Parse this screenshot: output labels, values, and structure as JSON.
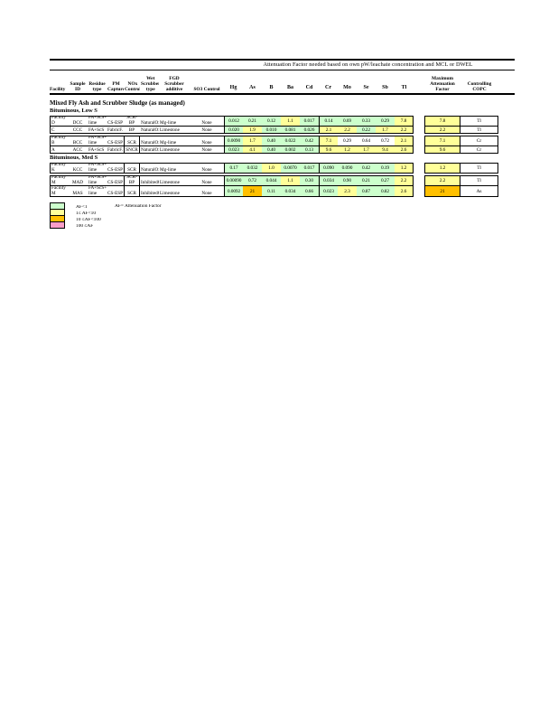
{
  "page": {
    "title": "Attenuation Factor needed based on own pW/leachate concentration and MCL or DWEL"
  },
  "colors": {
    "g": "#CCFFCC",
    "y": "#FFFF99",
    "o": "#FFC000",
    "p": "#FA9DC7",
    "w": "#FFFFFF"
  },
  "table": {
    "left_headers": [
      "Facility",
      "Sample ID",
      "Residue type",
      "PM Capture",
      "NOx Control",
      "Wet Scrubber type",
      "FGD Scrubber additive",
      "SO3 Control"
    ],
    "element_headers": [
      "Hg",
      "As",
      "B",
      "Ba",
      "Cd",
      "Cr",
      "Mo",
      "Se",
      "Sb",
      "Tl"
    ],
    "max_header": "Maximum Attenuation Factor",
    "copc_header": "Controlling COPC",
    "section_title": "Mixed Fly Ash and Scrubber Sludge (as managed)",
    "groups": [
      {
        "subtitle": "Bituminous,  Low S",
        "blocks": [
          [
            {
              "facility": "Facility D",
              "sample_id": "DCC",
              "residue": "FA+ScS+ lime",
              "pm_capture": "CS-ESP",
              "nox_control": "SCR-BP",
              "nox_boxed": false,
              "wet_scrubber": "NaturalOx.",
              "fgd_additive": "Mg-lime",
              "so3_control": "None",
              "two_line": true,
              "values": [
                [
                  "0.012",
                  "g"
                ],
                [
                  "0.21",
                  "g"
                ],
                [
                  "0.12",
                  "g"
                ],
                [
                  "1.1",
                  "y"
                ],
                [
                  "0.017",
                  "g"
                ],
                [
                  "0.14",
                  "g"
                ],
                [
                  "0.69",
                  "g"
                ],
                [
                  "0.33",
                  "g"
                ],
                [
                  "0.29",
                  "g"
                ],
                [
                  "7.8",
                  "y"
                ]
              ],
              "max": [
                "7.8",
                "y"
              ],
              "copc": "Tl"
            },
            {
              "facility": "Facility C",
              "sample_id": "CCC",
              "residue": "FA+ScS",
              "pm_capture": "FabricF.",
              "nox_control": "SNCR-BP",
              "nox_boxed": false,
              "wet_scrubber": "NaturalOx.",
              "fgd_additive": "Limestone",
              "so3_control": "None",
              "two_line": false,
              "values": [
                [
                  "0.020",
                  "g"
                ],
                [
                  "1.9",
                  "y"
                ],
                [
                  "0.010",
                  "g"
                ],
                [
                  "0.081",
                  "g"
                ],
                [
                  "0.026",
                  "g"
                ],
                [
                  "2.1",
                  "y"
                ],
                [
                  "2.2",
                  "y"
                ],
                [
                  "0.22",
                  "g"
                ],
                [
                  "1.7",
                  "y"
                ],
                [
                  "2.2",
                  "y"
                ]
              ],
              "max": [
                "2.2",
                "y"
              ],
              "copc": "Tl"
            }
          ],
          [
            {
              "facility": "Facility B",
              "sample_id": "BCC",
              "residue": "FA+ScS+ lime",
              "pm_capture": "CS-ESP",
              "nox_control": "SCR",
              "nox_boxed": true,
              "wet_scrubber": "NaturalOx.",
              "fgd_additive": "Mg-lime",
              "so3_control": "None",
              "two_line": true,
              "values": [
                [
                  "0.0090",
                  "g"
                ],
                [
                  "1.7",
                  "y"
                ],
                [
                  "0.40",
                  "g"
                ],
                [
                  "0.022",
                  "g"
                ],
                [
                  "0.42",
                  "g"
                ],
                [
                  "7.1",
                  "y"
                ],
                [
                  "0.29",
                  "w"
                ],
                [
                  "0.64",
                  "w"
                ],
                [
                  "0.72",
                  "w"
                ],
                [
                  "2.1",
                  "y"
                ]
              ],
              "max": [
                "7.1",
                "y"
              ],
              "copc": "Cr"
            },
            {
              "facility": "Facility A",
              "sample_id": "ACC",
              "residue": "FA+ScS",
              "pm_capture": "FabricF.",
              "nox_control": "SNCR",
              "nox_boxed": true,
              "wet_scrubber": "NaturalOx.",
              "fgd_additive": "Limestone",
              "so3_control": "None",
              "two_line": false,
              "values": [
                [
                  "0.023",
                  "g"
                ],
                [
                  "4.1",
                  "y"
                ],
                [
                  "0.40",
                  "g"
                ],
                [
                  "0.002",
                  "g"
                ],
                [
                  "0.13",
                  "g"
                ],
                [
                  "9.6",
                  "y"
                ],
                [
                  "1.2",
                  "y"
                ],
                [
                  "1.7",
                  "y"
                ],
                [
                  "9.4",
                  "y"
                ],
                [
                  "2.6",
                  "y"
                ]
              ],
              "max": [
                "9.6",
                "y"
              ],
              "copc": "Cr"
            }
          ]
        ]
      },
      {
        "subtitle": "Bituminous,  Med S",
        "blocks": [
          [
            {
              "facility": "Facility K",
              "sample_id": "KCC",
              "residue": "FA+ScS+ lime",
              "pm_capture": "CS-ESP",
              "nox_control": "SCR",
              "nox_boxed": true,
              "wet_scrubber": "NaturalOx.",
              "fgd_additive": "Mg-lime",
              "so3_control": "None",
              "two_line": true,
              "values": [
                [
                  "0.17",
                  "g"
                ],
                [
                  "0.032",
                  "g"
                ],
                [
                  "1.0",
                  "y"
                ],
                [
                  "0.0070",
                  "g"
                ],
                [
                  "0.017",
                  "g"
                ],
                [
                  "0.090",
                  "g"
                ],
                [
                  "0.090",
                  "g"
                ],
                [
                  "0.42",
                  "g"
                ],
                [
                  "0.19",
                  "g"
                ],
                [
                  "1.2",
                  "y"
                ]
              ],
              "max": [
                "1.2",
                "y"
              ],
              "copc": "Tl"
            }
          ],
          [
            {
              "facility": "Facility M",
              "sample_id": "MAD",
              "residue": "FA+ScS+ lime",
              "pm_capture": "CS-ESP",
              "nox_control": "SCR-BP",
              "nox_boxed": true,
              "wet_scrubber": "InhibitedOx.",
              "fgd_additive": "Limestone",
              "so3_control": "None",
              "two_line": true,
              "values": [
                [
                  "0.00090",
                  "g"
                ],
                [
                  "0.72",
                  "g"
                ],
                [
                  "0.044",
                  "g"
                ],
                [
                  "1.1",
                  "y"
                ],
                [
                  "0.30",
                  "g"
                ],
                [
                  "0.034",
                  "g"
                ],
                [
                  "0.90",
                  "g"
                ],
                [
                  "0.21",
                  "g"
                ],
                [
                  "0.27",
                  "g"
                ],
                [
                  "2.2",
                  "y"
                ]
              ],
              "max": [
                "2.2",
                "y"
              ],
              "copc": "Tl"
            },
            {
              "facility": "Facility M",
              "sample_id": "MAS",
              "residue": "FA+ScS+ lime",
              "pm_capture": "CS-ESP",
              "nox_control": "SCR",
              "nox_boxed": true,
              "wet_scrubber": "InhibitedOx.",
              "fgd_additive": "Limestone",
              "so3_control": "None",
              "two_line": true,
              "values": [
                [
                  "0.0092",
                  "g"
                ],
                [
                  "21",
                  "o"
                ],
                [
                  "0.11",
                  "g"
                ],
                [
                  "0.034",
                  "g"
                ],
                [
                  "0.66",
                  "g"
                ],
                [
                  "0.023",
                  "g"
                ],
                [
                  "2.3",
                  "y"
                ],
                [
                  "0.87",
                  "g"
                ],
                [
                  "0.82",
                  "g"
                ],
                [
                  "2.6",
                  "y"
                ]
              ],
              "max": [
                "21",
                "o"
              ],
              "copc": "As"
            }
          ]
        ]
      }
    ]
  },
  "legend": {
    "note": "AF= Attenuation Factor",
    "items": [
      {
        "label": "AF<1",
        "color_key": "g"
      },
      {
        "label": "1≤ AF<10",
        "color_key": "y"
      },
      {
        "label": "10 ≤AF<100",
        "color_key": "o"
      },
      {
        "label": "100 ≤AF",
        "color_key": "p"
      }
    ]
  }
}
